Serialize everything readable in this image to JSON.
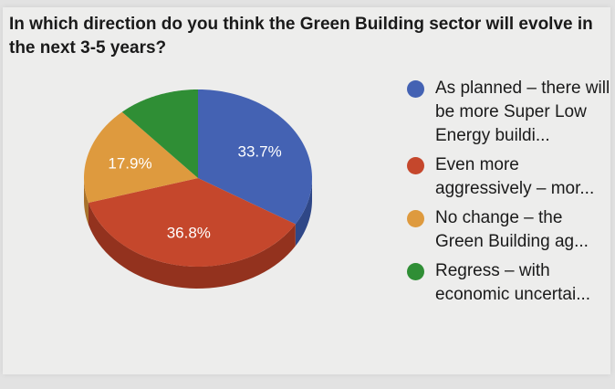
{
  "chart_data": {
    "type": "pie",
    "title": "In which direction do you think the Green Building sector will evolve in the next 3-5 years?",
    "slices": [
      {
        "label": "As planned – there will be more Super Low Energy buildi...",
        "value": 33.7,
        "display": "33.7%",
        "color": "#4462b3",
        "side_color": "#2f4787"
      },
      {
        "label": "Even more aggressively – mor...",
        "value": 36.8,
        "display": "36.8%",
        "color": "#c5472c",
        "side_color": "#93321e"
      },
      {
        "label": "No change – the Green Building ag...",
        "value": 17.9,
        "display": "17.9%",
        "color": "#de9a3e",
        "side_color": "#a8712a"
      },
      {
        "label": "Regress – with economic uncertai...",
        "value": 11.6,
        "display": "",
        "color": "#2f8e35",
        "side_color": "#1f6524"
      }
    ],
    "legend_position": "right"
  }
}
